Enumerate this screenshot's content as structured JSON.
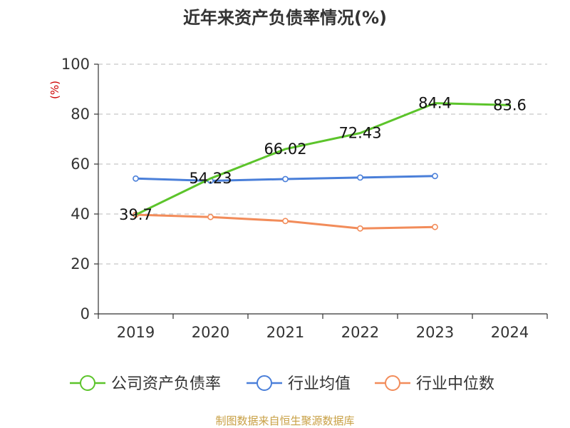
{
  "chart_data": {
    "type": "line",
    "title": "近年来资产负债率情况(%)",
    "ylabel": "(%)",
    "xlabel": "",
    "categories": [
      "2019",
      "2020",
      "2021",
      "2022",
      "2023",
      "2024"
    ],
    "ylim": [
      0,
      100
    ],
    "yticks": [
      0,
      20,
      40,
      60,
      80,
      100
    ],
    "grid": "horizontal dashed",
    "legend_position": "bottom",
    "series": [
      {
        "name": "公司资产负债率",
        "color": "#5cc42b",
        "values": [
          39.7,
          54.23,
          66.02,
          72.43,
          84.4,
          83.6
        ],
        "labels": [
          "39.7",
          "54.23",
          "66.02",
          "72.43",
          "84.4",
          "83.6"
        ],
        "markers": false
      },
      {
        "name": "行业均值",
        "color": "#4a7fd9",
        "values": [
          54.2,
          53.3,
          54.0,
          54.6,
          55.2,
          null
        ],
        "markers": true
      },
      {
        "name": "行业中位数",
        "color": "#f28c5a",
        "values": [
          39.7,
          38.8,
          37.2,
          34.2,
          34.8,
          null
        ],
        "markers": true
      }
    ]
  },
  "source": "制图数据来自恒生聚源数据库"
}
